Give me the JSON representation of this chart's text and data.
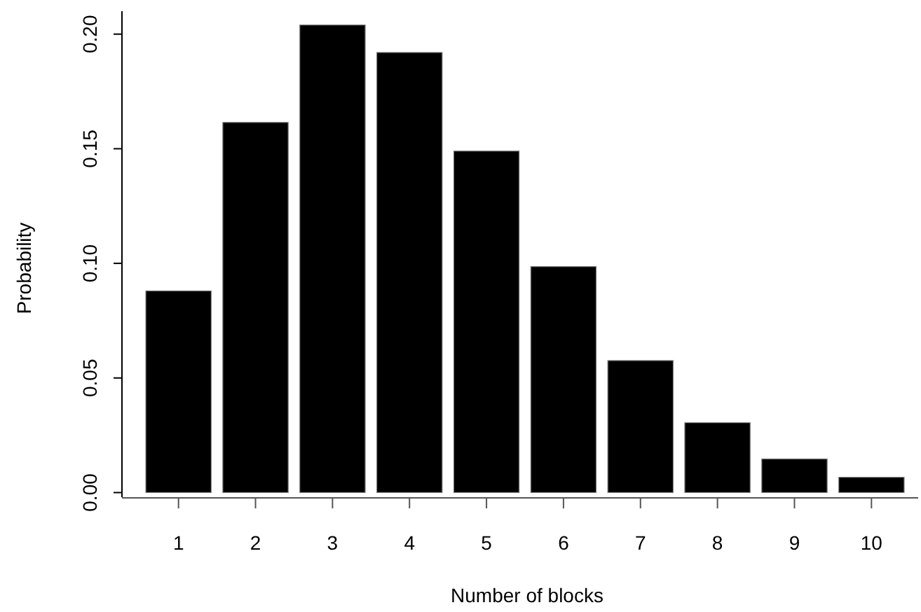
{
  "chart_data": {
    "type": "bar",
    "xlabel": "Number of blocks",
    "ylabel": "Probability",
    "categories": [
      "1",
      "2",
      "3",
      "4",
      "5",
      "6",
      "7",
      "8",
      "9",
      "10"
    ],
    "values": [
      0.088,
      0.1615,
      0.204,
      0.192,
      0.149,
      0.0986,
      0.0576,
      0.0305,
      0.0147,
      0.0067
    ],
    "color": "#000000",
    "ylim": [
      -0.002,
      0.21
    ],
    "yticks": [
      {
        "value": 0,
        "label": "0.00"
      },
      {
        "value": 0.05,
        "label": "0.05"
      },
      {
        "value": 0.1,
        "label": "0.10"
      },
      {
        "value": 0.15,
        "label": "0.15"
      },
      {
        "value": 0.2,
        "label": "0.20"
      }
    ],
    "grid": false
  }
}
